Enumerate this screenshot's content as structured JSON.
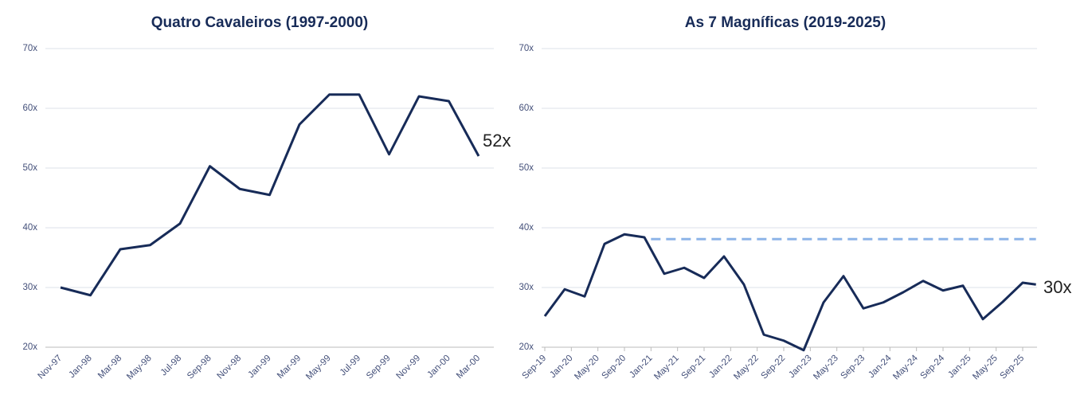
{
  "chart_data": [
    {
      "type": "line",
      "title": "Quatro Cavaleiros (1997-2000)",
      "categories": [
        "Nov-97",
        "Jan-98",
        "Mar-98",
        "May-98",
        "Jul-98",
        "Sep-98",
        "Nov-98",
        "Jan-99",
        "Mar-99",
        "May-99",
        "Jul-99",
        "Sep-99",
        "Nov-99",
        "Jan-00",
        "Mar-00"
      ],
      "series": [
        {
          "color": "#172b58",
          "values": [
            30,
            28.7,
            36.4,
            37.1,
            40.7,
            50.3,
            46.5,
            45.5,
            57.3,
            62.3,
            62.3,
            52.3,
            62,
            61.2,
            52
          ]
        }
      ],
      "ylim": [
        20,
        70
      ],
      "yticks": [
        {
          "value": 20,
          "label": "20x"
        },
        {
          "value": 30,
          "label": "30x"
        },
        {
          "value": 40,
          "label": "40x"
        },
        {
          "value": 50,
          "label": "50x"
        },
        {
          "value": 60,
          "label": "60x"
        },
        {
          "value": 70,
          "label": "70x"
        }
      ],
      "grid": true,
      "annotation": "52x"
    },
    {
      "type": "line",
      "title": "As 7 Magníficas (2019-2025)",
      "x": [
        "Sep-19",
        "Dec-19",
        "Mar-20",
        "Jun-20",
        "Sep-20",
        "Dec-20",
        "Mar-21",
        "Jun-21",
        "Sep-21",
        "Dec-21",
        "Mar-22",
        "Jun-22",
        "Sep-22",
        "Dec-22",
        "Mar-23",
        "Jun-23",
        "Sep-23",
        "Dec-23",
        "Mar-24",
        "Jun-24",
        "Sep-24",
        "Dec-24",
        "Mar-25",
        "Jun-25",
        "Sep-25",
        "Nov-25"
      ],
      "xticks": [
        "Sep-19",
        "Jan-20",
        "May-20",
        "Sep-20",
        "Jan-21",
        "May-21",
        "Sep-21",
        "Jan-22",
        "May-22",
        "Sep-22",
        "Jan-23",
        "May-23",
        "Sep-23",
        "Jan-24",
        "May-24",
        "Sep-24",
        "Jan-25",
        "May-25",
        "Sep-25"
      ],
      "series": [
        {
          "color": "#172b58",
          "values": [
            25.2,
            29.7,
            28.5,
            37.3,
            38.9,
            38.4,
            32.3,
            33.3,
            31.6,
            35.2,
            30.5,
            22.1,
            21.1,
            19.5,
            27.5,
            31.9,
            26.5,
            27.5,
            29.2,
            31.1,
            29.5,
            30.3,
            24.7,
            27.6,
            30.8,
            30.5
          ]
        }
      ],
      "reference_line": {
        "value": 38.1,
        "x": [
          "Jan-21",
          "Nov-25"
        ],
        "color": "#8db4e8"
      },
      "ylim": [
        20,
        70
      ],
      "yticks": [
        {
          "value": 20,
          "label": "20x"
        },
        {
          "value": 30,
          "label": "30x"
        },
        {
          "value": 40,
          "label": "40x"
        },
        {
          "value": 50,
          "label": "50x"
        },
        {
          "value": 60,
          "label": "60x"
        },
        {
          "value": 70,
          "label": "70x"
        }
      ],
      "grid": true,
      "annotation": "30x"
    }
  ]
}
